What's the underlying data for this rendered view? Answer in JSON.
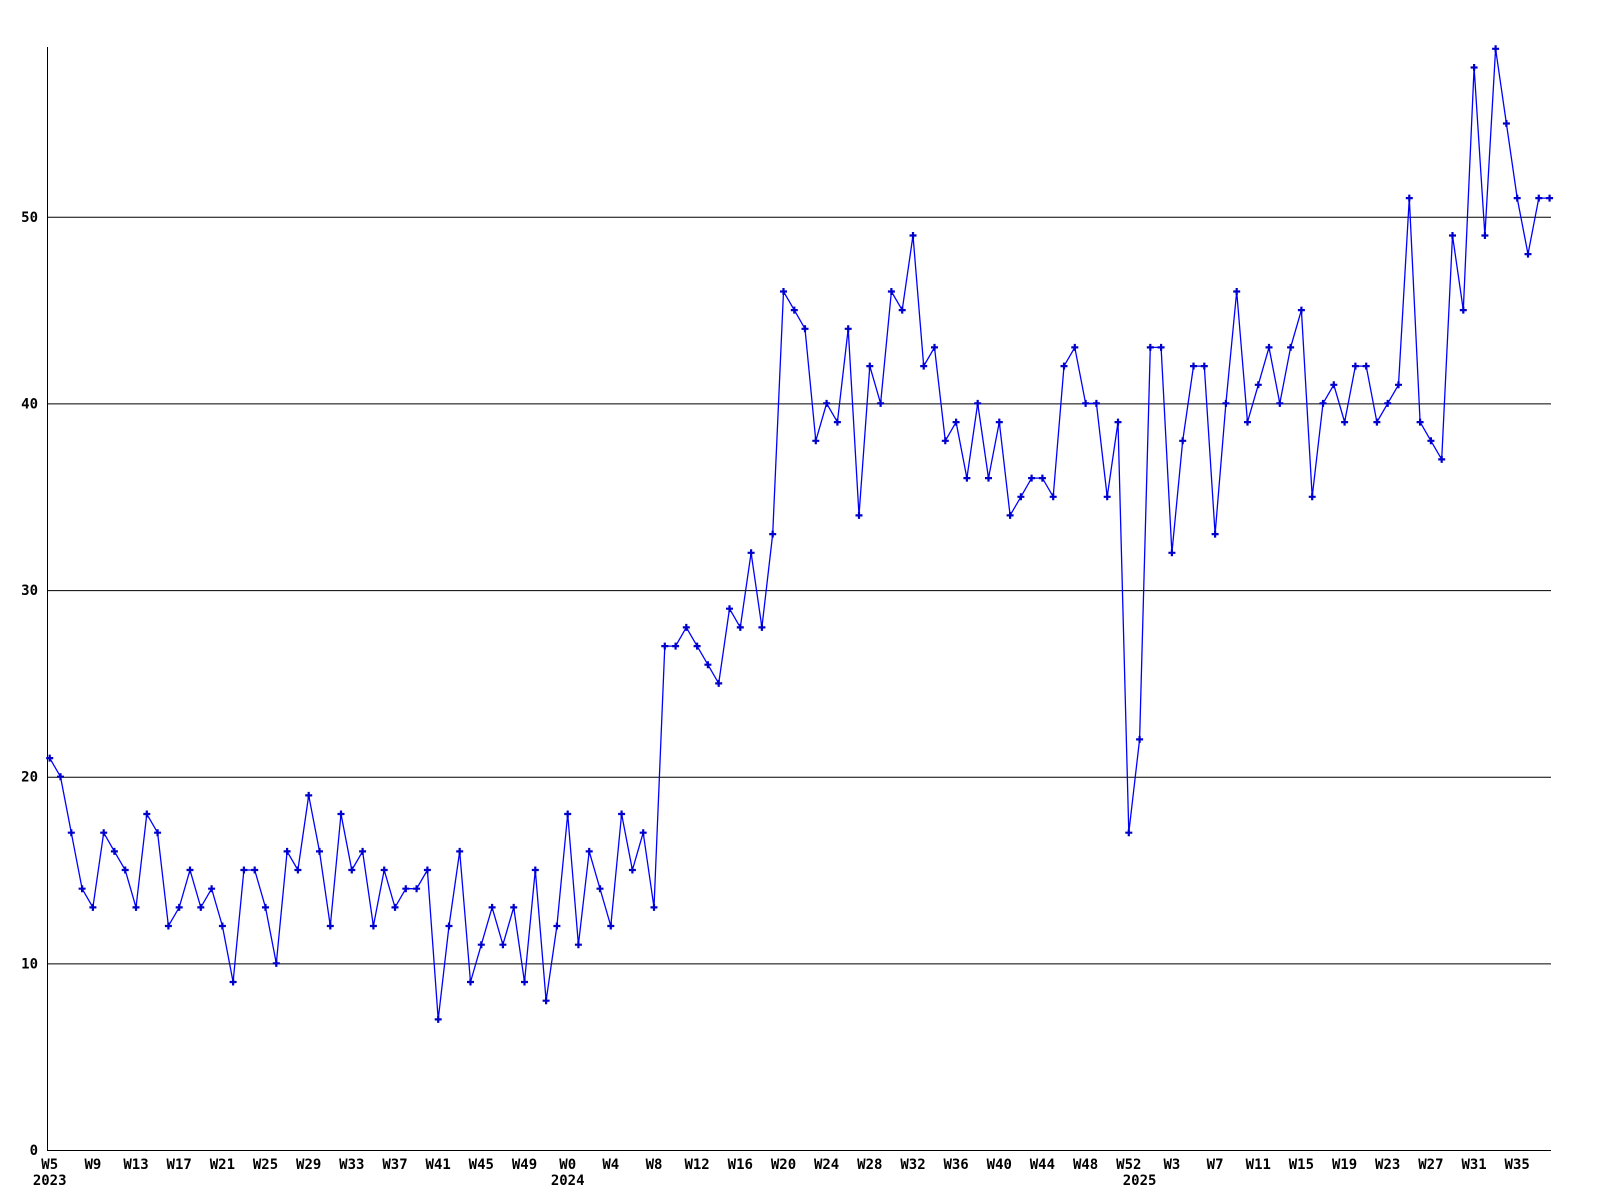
{
  "chart_data": {
    "type": "line",
    "title": "",
    "xlabel": "",
    "ylabel": "",
    "grid": true,
    "legend": false,
    "ylim": [
      0,
      59
    ],
    "ytick_values": [
      0,
      10,
      20,
      30,
      40,
      50
    ],
    "ytick_labels": [
      "0",
      "10",
      "20",
      "30",
      "40",
      "50"
    ],
    "x_tick_every": 4,
    "line_color": "#0000ff",
    "marker_color": "#0000cc",
    "marker": "plus",
    "axis_color": "#000000",
    "background_color": "#ffffff",
    "x_unit_prefix": "W",
    "years": [
      {
        "year": "2023",
        "first_week": 5,
        "values": [
          21,
          20,
          17,
          14,
          13,
          17,
          16,
          15,
          13,
          18,
          17,
          12,
          13,
          15,
          13,
          14,
          12,
          9,
          15,
          15,
          13,
          10,
          16,
          15,
          19,
          16,
          12,
          18,
          15,
          16,
          12,
          15,
          13,
          14,
          14,
          15,
          7,
          12,
          16,
          9,
          11,
          13,
          11,
          13,
          9,
          15,
          8,
          12
        ]
      },
      {
        "year": "2024",
        "first_week": 0,
        "values": [
          18,
          11,
          16,
          14,
          12,
          18,
          15,
          17,
          13,
          27,
          27,
          28,
          27,
          26,
          25,
          29,
          28,
          32,
          28,
          33,
          46,
          45,
          44,
          38,
          40,
          39,
          44,
          34,
          42,
          40,
          46,
          45,
          49,
          42,
          43,
          38,
          39,
          36,
          40,
          36,
          39,
          34,
          35,
          36,
          36,
          35,
          42,
          43,
          40,
          40,
          35,
          39,
          17
        ]
      },
      {
        "year": "2025",
        "first_week": 0,
        "values": [
          22,
          43,
          43,
          32,
          38,
          42,
          42,
          33,
          40,
          46,
          39,
          41,
          43,
          40,
          43,
          45,
          35,
          40,
          41,
          39,
          42,
          42,
          39,
          40,
          41,
          51,
          39,
          38,
          37,
          49,
          45,
          58,
          49,
          59,
          55,
          51,
          48,
          51,
          51
        ]
      }
    ]
  }
}
